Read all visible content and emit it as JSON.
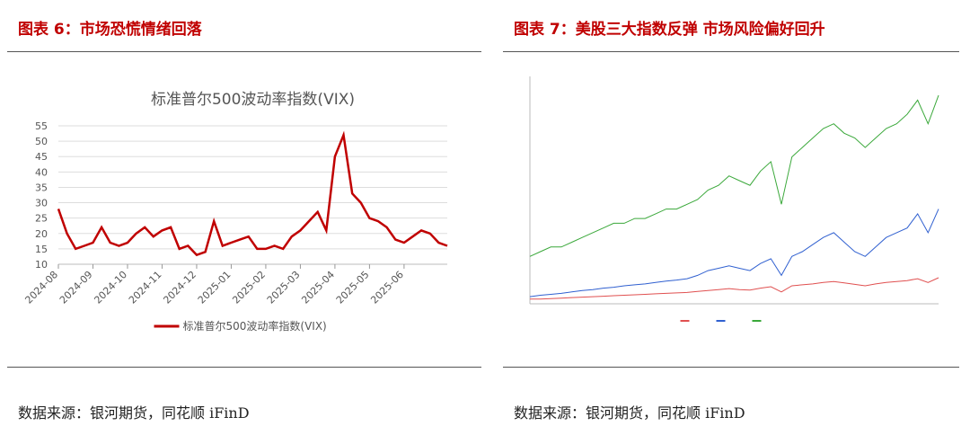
{
  "left": {
    "header": "图表 6：市场恐慌情绪回落",
    "source": "数据来源：银河期货，同花顺 iFinD",
    "chart_data": {
      "type": "line",
      "title": "标准普尔500波动率指数(VIX)",
      "categories": [
        "2024-08",
        null,
        null,
        null,
        "2024-09",
        null,
        null,
        null,
        "2024-10",
        null,
        null,
        null,
        "2024-11",
        null,
        null,
        null,
        "2024-12",
        null,
        null,
        null,
        "2025-01",
        null,
        null,
        null,
        "2025-02",
        null,
        null,
        null,
        "2025-03",
        null,
        null,
        null,
        "2025-04",
        null,
        null,
        null,
        "2025-05",
        null,
        null,
        null,
        "2025-06",
        null,
        null,
        null,
        null,
        null
      ],
      "series": [
        {
          "name": "标准普尔500波动率指数(VIX)",
          "color": "#c00000",
          "values": [
            28,
            20,
            15,
            16,
            17,
            22,
            17,
            16,
            17,
            20,
            22,
            19,
            21,
            22,
            15,
            16,
            13,
            14,
            24,
            16,
            17,
            18,
            19,
            15,
            15,
            16,
            15,
            19,
            21,
            24,
            27,
            21,
            45,
            52,
            33,
            30,
            25,
            24,
            22,
            18,
            17,
            19,
            21,
            20,
            17,
            16
          ]
        }
      ],
      "ylim": [
        10,
        55
      ],
      "yticks": [
        10,
        15,
        20,
        25,
        30,
        35,
        40,
        45,
        50,
        55
      ],
      "grid": true,
      "legend": "bottom"
    }
  },
  "right": {
    "header": "图表 7：美股三大指数反弹 市场风险偏好回升",
    "source": "数据来源：银河期货，同花顺 iFinD",
    "chart_data": {
      "type": "line",
      "series": [
        {
          "color": "#e05050",
          "values": [
            1,
            1,
            1.1,
            1.2,
            1.3,
            1.4,
            1.5,
            1.6,
            1.7,
            1.8,
            1.9,
            2,
            2.1,
            2.2,
            2.3,
            2.4,
            2.6,
            2.8,
            3,
            3.2,
            3,
            2.9,
            3.3,
            3.6,
            2.5,
            3.8,
            4,
            4.2,
            4.5,
            4.7,
            4.4,
            4.1,
            3.8,
            4.2,
            4.5,
            4.7,
            4.9,
            5.3,
            4.5,
            5.5
          ]
        },
        {
          "color": "#3060d0",
          "values": [
            1.5,
            1.8,
            2,
            2.2,
            2.5,
            2.8,
            3,
            3.3,
            3.5,
            3.8,
            4,
            4.2,
            4.5,
            4.8,
            5,
            5.3,
            6,
            7,
            7.5,
            8,
            7.5,
            7,
            8.5,
            9.5,
            6,
            10,
            11,
            12.5,
            14,
            15,
            13,
            11,
            10,
            12,
            14,
            15,
            16,
            19,
            15,
            20
          ]
        },
        {
          "color": "#3aa83a",
          "values": [
            10,
            11,
            12,
            12,
            13,
            14,
            15,
            16,
            17,
            17,
            18,
            18,
            19,
            20,
            20,
            21,
            22,
            24,
            25,
            27,
            26,
            25,
            28,
            30,
            21,
            31,
            33,
            35,
            37,
            38,
            36,
            35,
            33,
            35,
            37,
            38,
            40,
            43,
            38,
            44
          ]
        }
      ],
      "ylim": [
        0,
        48
      ],
      "legend": "bottom"
    }
  }
}
